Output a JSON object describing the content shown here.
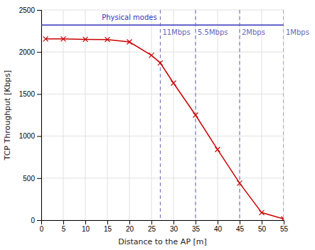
{
  "chart_data": {
    "type": "line",
    "x_label": "Distance to the AP [m]",
    "y_label": "TCP Throughput [Kbps]",
    "x": [
      1,
      5,
      10,
      15,
      20,
      25,
      27,
      30,
      35,
      40,
      45,
      50,
      55
    ],
    "values": [
      2155,
      2155,
      2150,
      2148,
      2120,
      1960,
      1870,
      1630,
      1250,
      840,
      440,
      90,
      15
    ],
    "color": "#cc0000",
    "marker": "x",
    "xlim": [
      0,
      55
    ],
    "ylim": [
      0,
      2500
    ],
    "xticks": [
      0,
      5,
      10,
      15,
      20,
      25,
      30,
      35,
      40,
      45,
      50,
      55
    ],
    "yticks": [
      0,
      500,
      1000,
      1500,
      2000,
      2500
    ],
    "grid": true,
    "hline": {
      "value": 2320,
      "color": "#3333bb"
    },
    "vlines": [
      {
        "value": 27,
        "label": "11Mbps",
        "color": "#6666bb"
      },
      {
        "value": 35,
        "label": "5.5Mbps",
        "color": "#6666bb"
      },
      {
        "value": 45,
        "label": "2Mbps",
        "color": "#6666bb"
      },
      {
        "value": 55,
        "label": "1Mbps",
        "color": "#6666bb"
      }
    ],
    "annotations": [
      {
        "text": "Physical modes",
        "color": "#3333bb"
      }
    ]
  }
}
